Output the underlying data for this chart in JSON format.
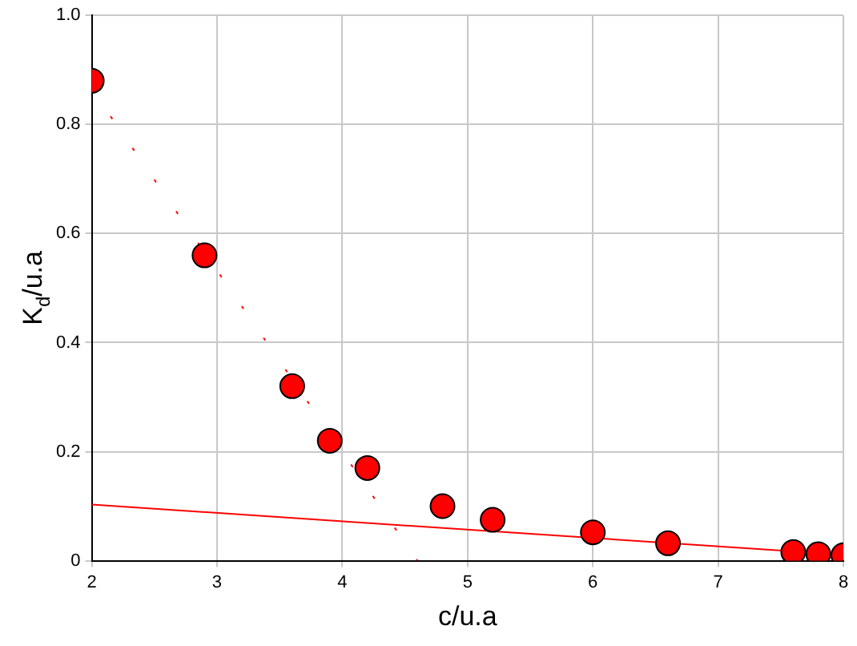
{
  "chart_data": {
    "type": "scatter",
    "xlabel": "c/u.a",
    "ylabel": "K$_{d}$/u.a",
    "xlim": [
      2,
      8
    ],
    "xticks": [
      2,
      3,
      4,
      5,
      6,
      7,
      8
    ],
    "ylim": [
      0,
      1.0
    ],
    "yticks": [
      0,
      {
        "value": 0.2,
        "label": "0.2"
      },
      {
        "value": 0.4,
        "label": "0.4"
      },
      {
        "value": 0.6,
        "label": "0.6"
      },
      {
        "value": 0.8,
        "label": "0.8"
      },
      {
        "value": 1.0,
        "label": "1.0"
      }
    ],
    "grid": true,
    "legend": false,
    "marker": "circle",
    "series": [
      {
        "color": "#ff0000",
        "x": [
          2,
          2.9,
          3.6,
          3.9,
          4.2,
          4.8,
          5.2,
          6,
          6.6,
          7.6,
          7.8,
          8
        ],
        "values": [
          0.88,
          0.56,
          0.32,
          0.22,
          0.17,
          0.1,
          0.075,
          0.052,
          0.032,
          0.016,
          0.012,
          0.01
        ]
      },
      {
        "type": "line",
        "color": "#ff0000",
        "line_style": "solid",
        "marker": "none",
        "x": [
          2,
          8
        ],
        "values": [
          0.103,
          0.011
        ]
      },
      {
        "type": "line",
        "color": "#ff0000",
        "line_style": "dotted",
        "marker": "none",
        "x": [
          2.15,
          4.6
        ],
        "values": [
          0.815,
          0
        ]
      }
    ]
  }
}
